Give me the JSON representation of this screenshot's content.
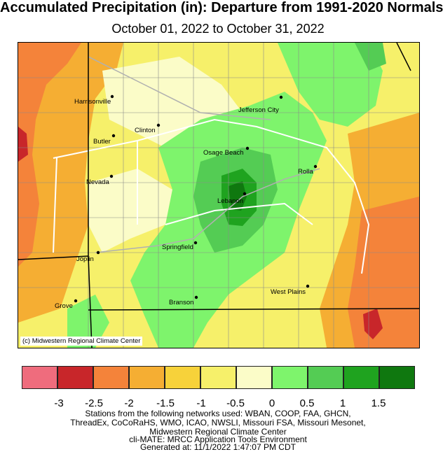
{
  "title": "Accumulated Precipitation (in): Departure from 1991-2020 Normals",
  "subtitle": "October 01, 2022 to October 31, 2022",
  "map": {
    "credit": "(c) Midwestern Regional Climate Center",
    "cities": [
      {
        "name": "Harrisonville"
      },
      {
        "name": "Jefferson City"
      },
      {
        "name": "Clinton"
      },
      {
        "name": "Butler"
      },
      {
        "name": "Osage Beach"
      },
      {
        "name": "Rolla"
      },
      {
        "name": "Nevada"
      },
      {
        "name": "Lebanon"
      },
      {
        "name": "Springfield"
      },
      {
        "name": "Joplin"
      },
      {
        "name": "West Plains"
      },
      {
        "name": "Branson"
      },
      {
        "name": "Grove"
      }
    ]
  },
  "legend": {
    "colors": [
      "#ef6c7d",
      "#c8262a",
      "#f4833a",
      "#f5ae33",
      "#f7d23a",
      "#f6f06a",
      "#fbfcc8",
      "#7ef46c",
      "#54cc54",
      "#1fa31f",
      "#0f780f"
    ],
    "ticks": [
      "-3",
      "-2.5",
      "-2",
      "-1.5",
      "-1",
      "-0.5",
      "0",
      "0.5",
      "1",
      "1.5"
    ]
  },
  "footer": [
    "Stations from the following networks used: WBAN, COOP, FAA, GHCN,",
    "ThreadEx, CoCoRaHS, WMO, ICAO, NWSLI, Missouri FSA, Missouri Mesonet,",
    "Midwestern Regional Climate Center",
    "cli-MATE: MRCC Application Tools Environment",
    "Generated at: 11/1/2022 1:47:07 PM CDT"
  ]
}
